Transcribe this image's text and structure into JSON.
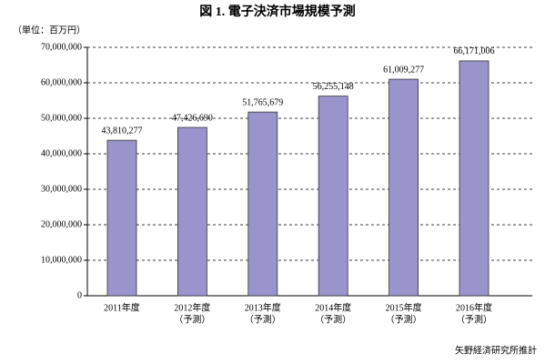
{
  "chart_data": {
    "type": "bar",
    "title": "図 1. 電子決済市場規模予測",
    "subtitle": "（単位：百万円）",
    "source": "矢野経済研究所推計",
    "categories": [
      "2011年度",
      "2012年度",
      "2013年度",
      "2014年度",
      "2015年度",
      "2016年度"
    ],
    "category_notes": [
      null,
      "（予測）",
      "（予測）",
      "（予測）",
      "（予測）",
      "（予測）"
    ],
    "values": [
      43810277,
      47426690,
      51765679,
      56255148,
      61009277,
      66171006
    ],
    "value_labels": [
      "43,810,277",
      "47,426,690",
      "51,765,679",
      "56,255,148",
      "61,009,277",
      "66,171,006"
    ],
    "color": "#9a94cc",
    "ylim": [
      0,
      70000000
    ],
    "yticks": [
      0,
      {
        "value": 10000000,
        "label": "10,000,000"
      },
      {
        "value": 20000000,
        "label": "20,000,000"
      },
      {
        "value": 30000000,
        "label": "30,000,000"
      },
      {
        "value": 40000000,
        "label": "40,000,000"
      },
      {
        "value": 50000000,
        "label": "50,000,000"
      },
      {
        "value": 60000000,
        "label": "60,000,000"
      },
      {
        "value": 70000000,
        "label": "70,000,000"
      }
    ],
    "grid": true
  }
}
